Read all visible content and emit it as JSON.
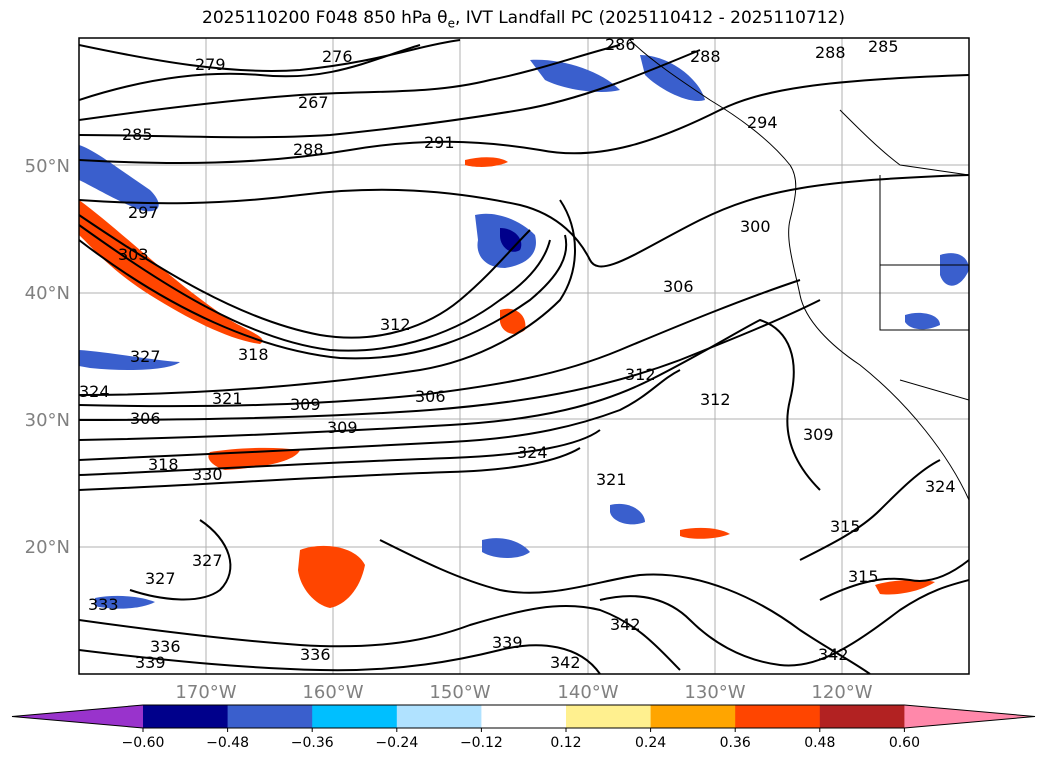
{
  "title": {
    "prefix": "2025110200 F048 850 hPa ",
    "theta": "θ",
    "sub": "e",
    "suffix": ", IVT Landfall PC (2025110412 - 2025110712)"
  },
  "map": {
    "lat_labels": [
      "50°N",
      "40°N",
      "30°N",
      "20°N"
    ],
    "lon_labels": [
      "170°W",
      "160°W",
      "150°W",
      "140°W",
      "130°W",
      "120°W"
    ],
    "contour_labels": [
      "279",
      "276",
      "286",
      "288",
      "285",
      "288",
      "267",
      "285",
      "288",
      "291",
      "294",
      "297",
      "300",
      "303",
      "306",
      "312",
      "318",
      "327",
      "324",
      "321",
      "309",
      "306",
      "306",
      "312",
      "312",
      "309",
      "309",
      "324",
      "321",
      "318",
      "330",
      "315",
      "327",
      "315",
      "327",
      "333",
      "336",
      "336",
      "339",
      "339",
      "342",
      "342",
      "342",
      "324"
    ]
  },
  "colorbar": {
    "ticks": [
      "−0.60",
      "−0.48",
      "−0.36",
      "−0.24",
      "−0.12",
      "0.12",
      "0.24",
      "0.36",
      "0.48",
      "0.60"
    ],
    "colors": [
      "#9933cc",
      "#00008b",
      "#3a5fcd",
      "#00bfff",
      "#b0e2ff",
      "#ffffff",
      "#fff08f",
      "#ffa500",
      "#ff4500",
      "#b22222",
      "#ff88aa"
    ]
  }
}
